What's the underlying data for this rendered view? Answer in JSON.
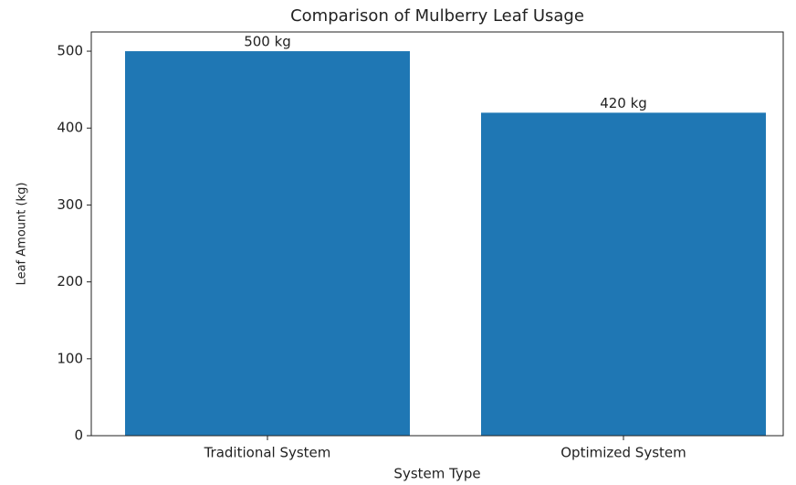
{
  "chart_data": {
    "type": "bar",
    "title": "Comparison of Mulberry Leaf Usage",
    "xlabel": "System Type",
    "ylabel": "Leaf Amount (kg)",
    "categories": [
      "Traditional System",
      "Optimized System"
    ],
    "values": [
      500,
      420
    ],
    "value_labels": [
      "500 kg",
      "420 kg"
    ],
    "color": "#1f77b4",
    "ylim": [
      0,
      525
    ],
    "yticks": [
      0,
      100,
      200,
      300,
      400,
      500
    ],
    "grid": false
  }
}
